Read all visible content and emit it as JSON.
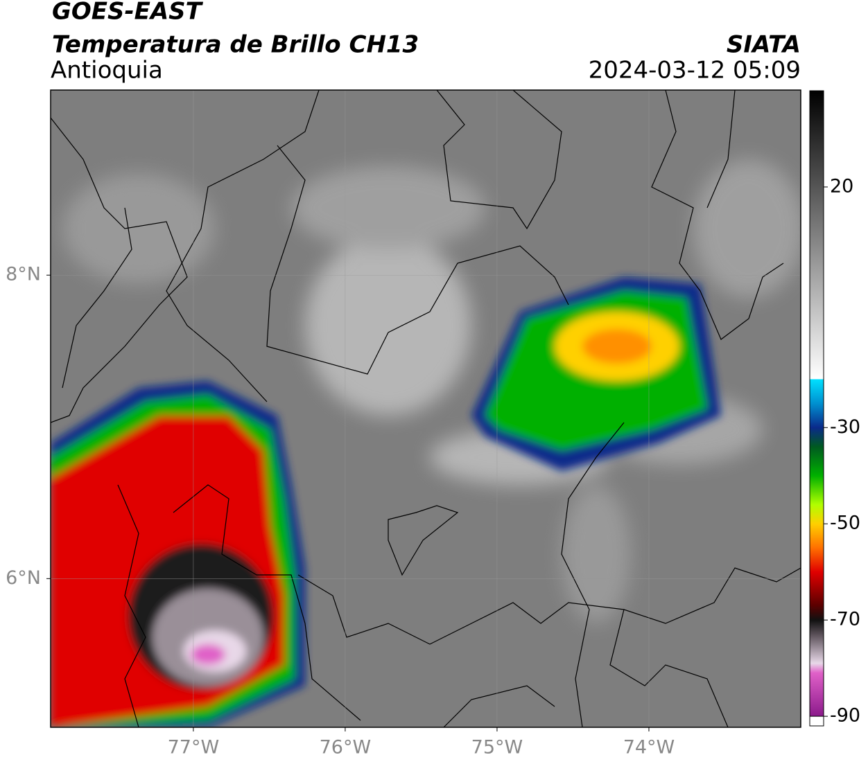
{
  "header": {
    "title": "GOES-EAST",
    "subtitle": "Temperatura de Brillo CH13",
    "region": "Antioquia",
    "source": "SIATA",
    "timestamp": "2024-03-12 05:09"
  },
  "map": {
    "xlim": [
      -77.94,
      -73.0
    ],
    "ylim": [
      5.02,
      9.22
    ],
    "xticks": [
      {
        "value": -77,
        "label": "77°W"
      },
      {
        "value": -76,
        "label": "76°W"
      },
      {
        "value": -75,
        "label": "75°W"
      },
      {
        "value": -74,
        "label": "74°W"
      }
    ],
    "yticks": [
      {
        "value": 8,
        "label": "8°N"
      },
      {
        "value": 6,
        "label": "6°N"
      }
    ],
    "grid": true
  },
  "colorbar": {
    "lim": [
      -92,
      40
    ],
    "ticks": [
      20,
      -30,
      -50,
      -70,
      -90
    ],
    "under_color": "#ffffff",
    "colormap": [
      {
        "value": -90,
        "color": "#8b1a8b"
      },
      {
        "value": -81,
        "color": "#e060c8"
      },
      {
        "value": -79,
        "color": "#e8d8e8"
      },
      {
        "value": -73,
        "color": "#5a5058"
      },
      {
        "value": -70,
        "color": "#111111"
      },
      {
        "value": -67,
        "color": "#5a0000"
      },
      {
        "value": -60,
        "color": "#e00000"
      },
      {
        "value": -55,
        "color": "#ff7000"
      },
      {
        "value": -50,
        "color": "#ffd000"
      },
      {
        "value": -46,
        "color": "#b0ff00"
      },
      {
        "value": -40,
        "color": "#00b000"
      },
      {
        "value": -34,
        "color": "#005a20"
      },
      {
        "value": -30,
        "color": "#0a2a8a"
      },
      {
        "value": -25,
        "color": "#0090d0"
      },
      {
        "value": -20,
        "color": "#00e0ff"
      },
      {
        "value": -19.9,
        "color": "#ffffff"
      },
      {
        "value": 40,
        "color": "#000000"
      }
    ]
  }
}
